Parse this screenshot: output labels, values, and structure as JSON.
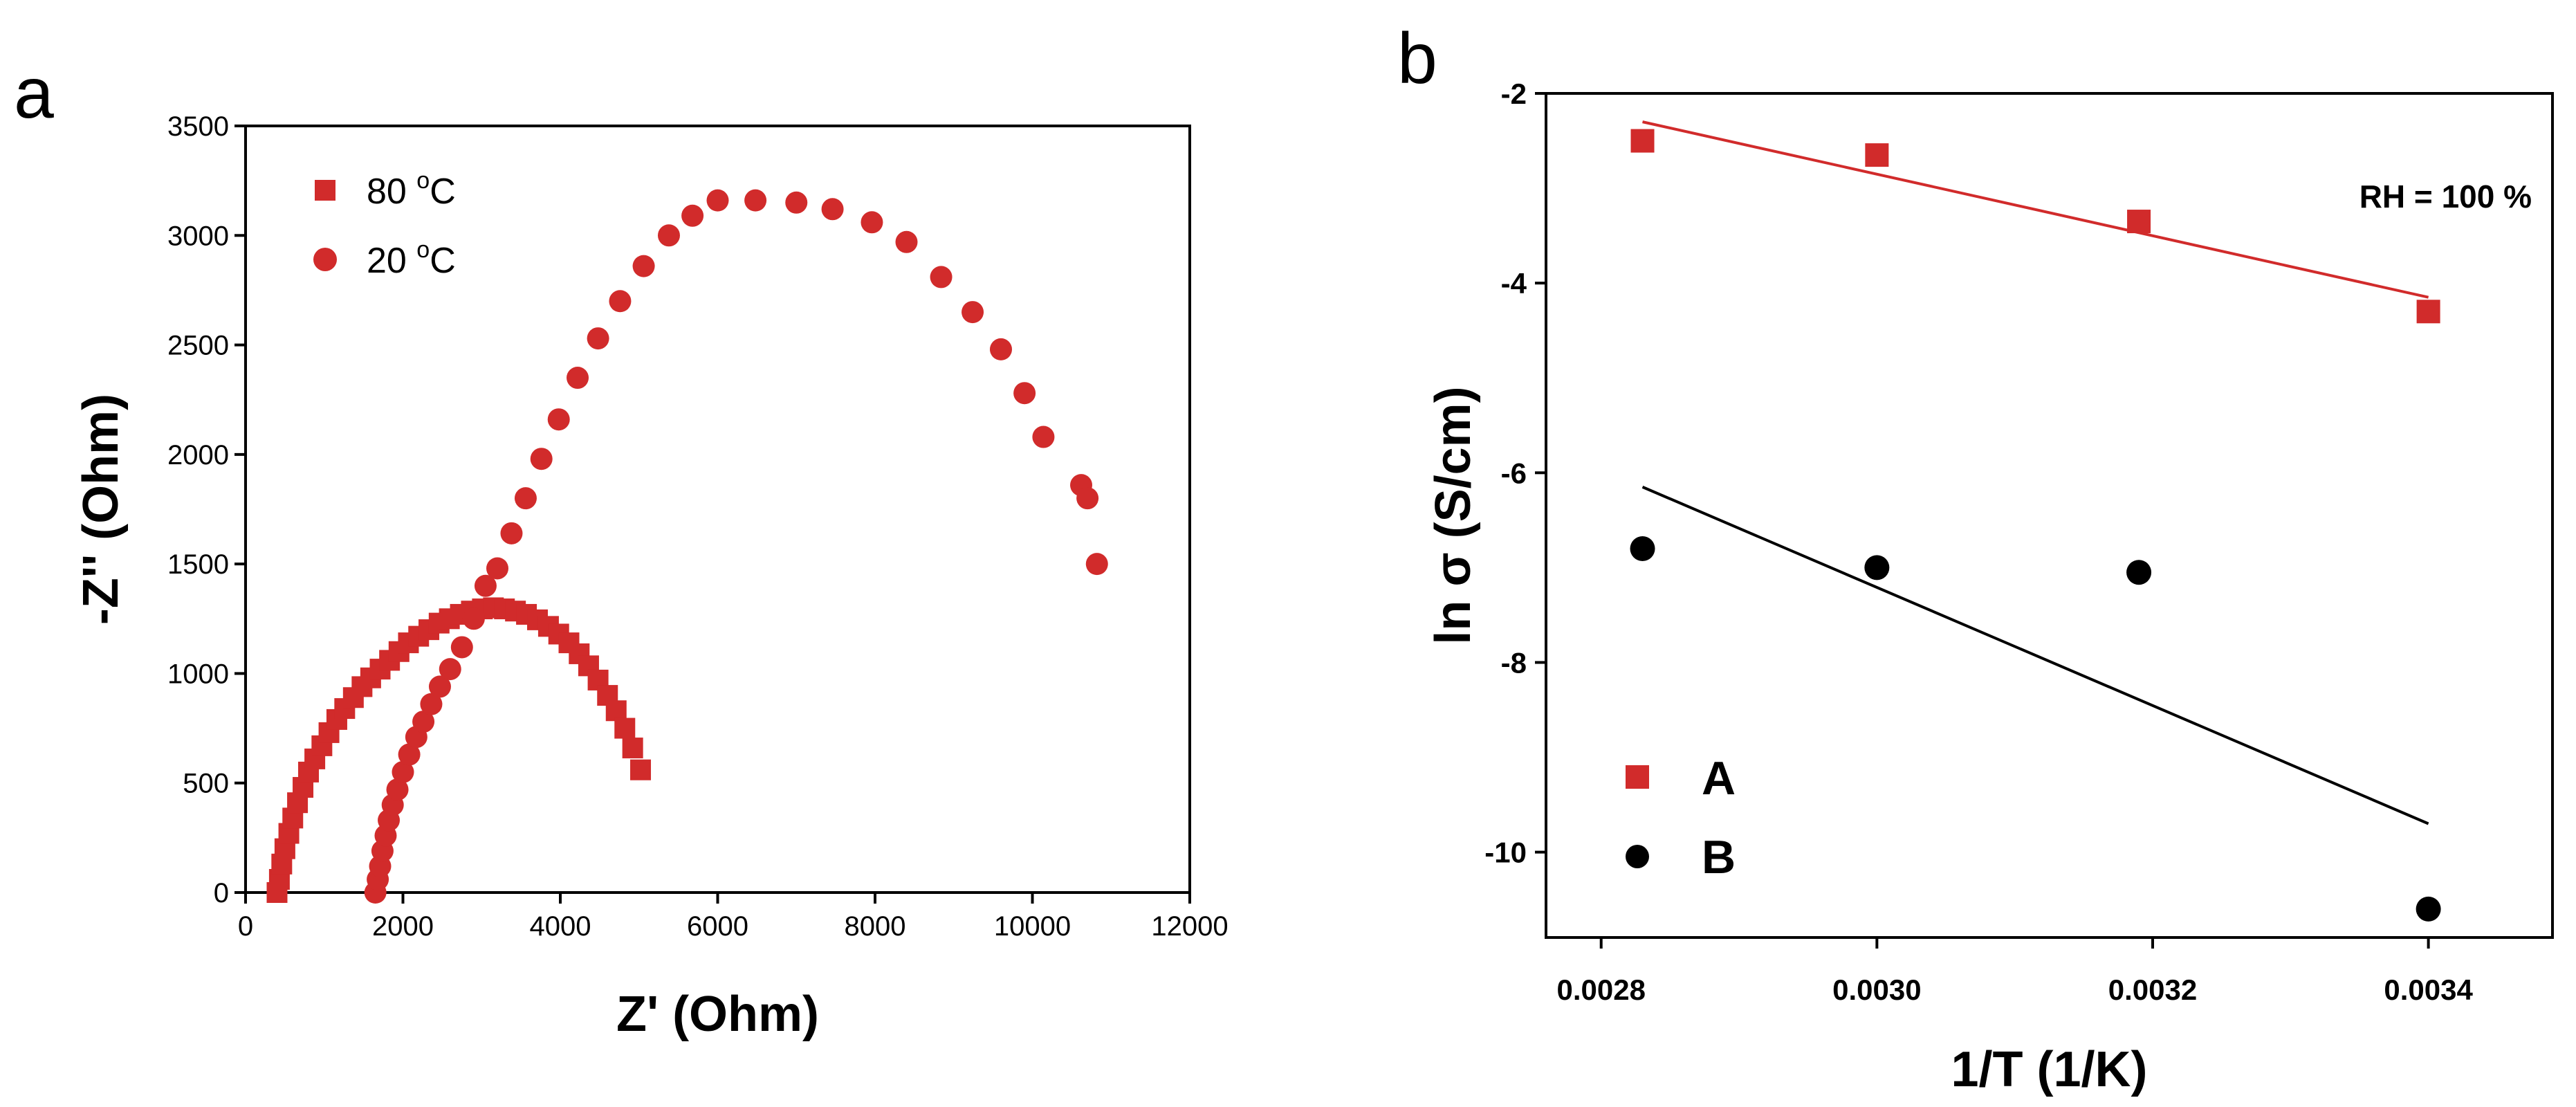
{
  "panels": {
    "a_label": "a",
    "b_label": "b"
  },
  "chart_data": [
    {
      "type": "scatter",
      "title": "",
      "xlabel": "Z' (Ohm)",
      "ylabel": "-Z'' (Ohm)",
      "xlim": [
        0,
        12000
      ],
      "ylim": [
        0,
        3500
      ],
      "xticks": [
        "0",
        "2000",
        "4000",
        "6000",
        "8000",
        "10000",
        "12000"
      ],
      "yticks": [
        "0",
        "500",
        "1000",
        "1500",
        "2000",
        "2500",
        "3000",
        "3500"
      ],
      "legend_position": "top-left",
      "series": [
        {
          "name": "80 °C",
          "label_prefix": "80 ",
          "label_sup": "o",
          "label_suffix": "C",
          "marker": "square",
          "color": "#d12b2b",
          "x": [
            400,
            430,
            460,
            500,
            550,
            600,
            660,
            730,
            800,
            880,
            970,
            1060,
            1160,
            1260,
            1370,
            1480,
            1590,
            1710,
            1830,
            1950,
            2070,
            2200,
            2330,
            2460,
            2590,
            2730,
            2870,
            3010,
            3150,
            3290,
            3430,
            3570,
            3710,
            3850,
            3980,
            4110,
            4240,
            4360,
            4480,
            4600,
            4710,
            4820,
            4920,
            5020
          ],
          "y": [
            0,
            60,
            130,
            200,
            270,
            340,
            410,
            480,
            550,
            610,
            670,
            730,
            790,
            840,
            890,
            940,
            980,
            1020,
            1060,
            1100,
            1140,
            1170,
            1200,
            1230,
            1250,
            1270,
            1285,
            1295,
            1300,
            1295,
            1285,
            1270,
            1245,
            1215,
            1180,
            1140,
            1090,
            1035,
            970,
            900,
            830,
            750,
            660,
            560
          ]
        },
        {
          "name": "20 °C",
          "label_prefix": "20 ",
          "label_sup": "o",
          "label_suffix": "C",
          "marker": "circle",
          "color": "#d12b2b",
          "x": [
            1650,
            1680,
            1710,
            1740,
            1780,
            1820,
            1870,
            1930,
            2000,
            2080,
            2170,
            2260,
            2360,
            2470,
            2600,
            2750,
            2900,
            3050,
            3200,
            3380,
            3560,
            3760,
            3980,
            4220,
            4480,
            4760,
            5060,
            5380,
            5680,
            6000,
            6480,
            7000,
            7460,
            7960,
            8400,
            8840,
            9240,
            9600,
            9900,
            10140,
            10620,
            10700,
            10820
          ],
          "y": [
            0,
            60,
            120,
            190,
            260,
            330,
            400,
            470,
            550,
            630,
            710,
            780,
            860,
            940,
            1020,
            1120,
            1250,
            1400,
            1480,
            1640,
            1800,
            1980,
            2160,
            2350,
            2530,
            2700,
            2860,
            3000,
            3090,
            3160,
            3160,
            3150,
            3120,
            3060,
            2970,
            2810,
            2650,
            2480,
            2280,
            2080,
            1860,
            1800,
            1500
          ]
        }
      ]
    },
    {
      "type": "scatter",
      "title": "",
      "xlabel": "1/T (1/K)",
      "ylabel": "ln σ (S/cm)",
      "xlim": [
        0.00276,
        0.00349
      ],
      "ylim": [
        -10.9,
        -2
      ],
      "xticks": [
        "0.0028",
        "0.0030",
        "0.0032",
        "0.0034"
      ],
      "xtick_values": [
        0.0028,
        0.003,
        0.0032,
        0.0034
      ],
      "yticks": [
        "-2",
        "-4",
        "-6",
        "-8",
        "-10"
      ],
      "ytick_values": [
        -2,
        -4,
        -6,
        -8,
        -10
      ],
      "annotation": "RH = 100 %",
      "legend_position": "bottom-left",
      "series": [
        {
          "name": "A",
          "marker": "square",
          "color": "#d12b2b",
          "x": [
            0.00283,
            0.003,
            0.00319,
            0.0034
          ],
          "y": [
            -2.5,
            -2.65,
            -3.35,
            -4.3
          ],
          "fit": {
            "x": [
              0.00283,
              0.0034
            ],
            "y": [
              -2.3,
              -4.15
            ]
          }
        },
        {
          "name": "B",
          "marker": "circle",
          "color": "#000000",
          "x": [
            0.00283,
            0.003,
            0.00319,
            0.0034
          ],
          "y": [
            -6.8,
            -7.0,
            -7.05,
            -10.6
          ],
          "fit": {
            "x": [
              0.00283,
              0.0034
            ],
            "y": [
              -6.15,
              -9.7
            ]
          }
        }
      ]
    }
  ]
}
